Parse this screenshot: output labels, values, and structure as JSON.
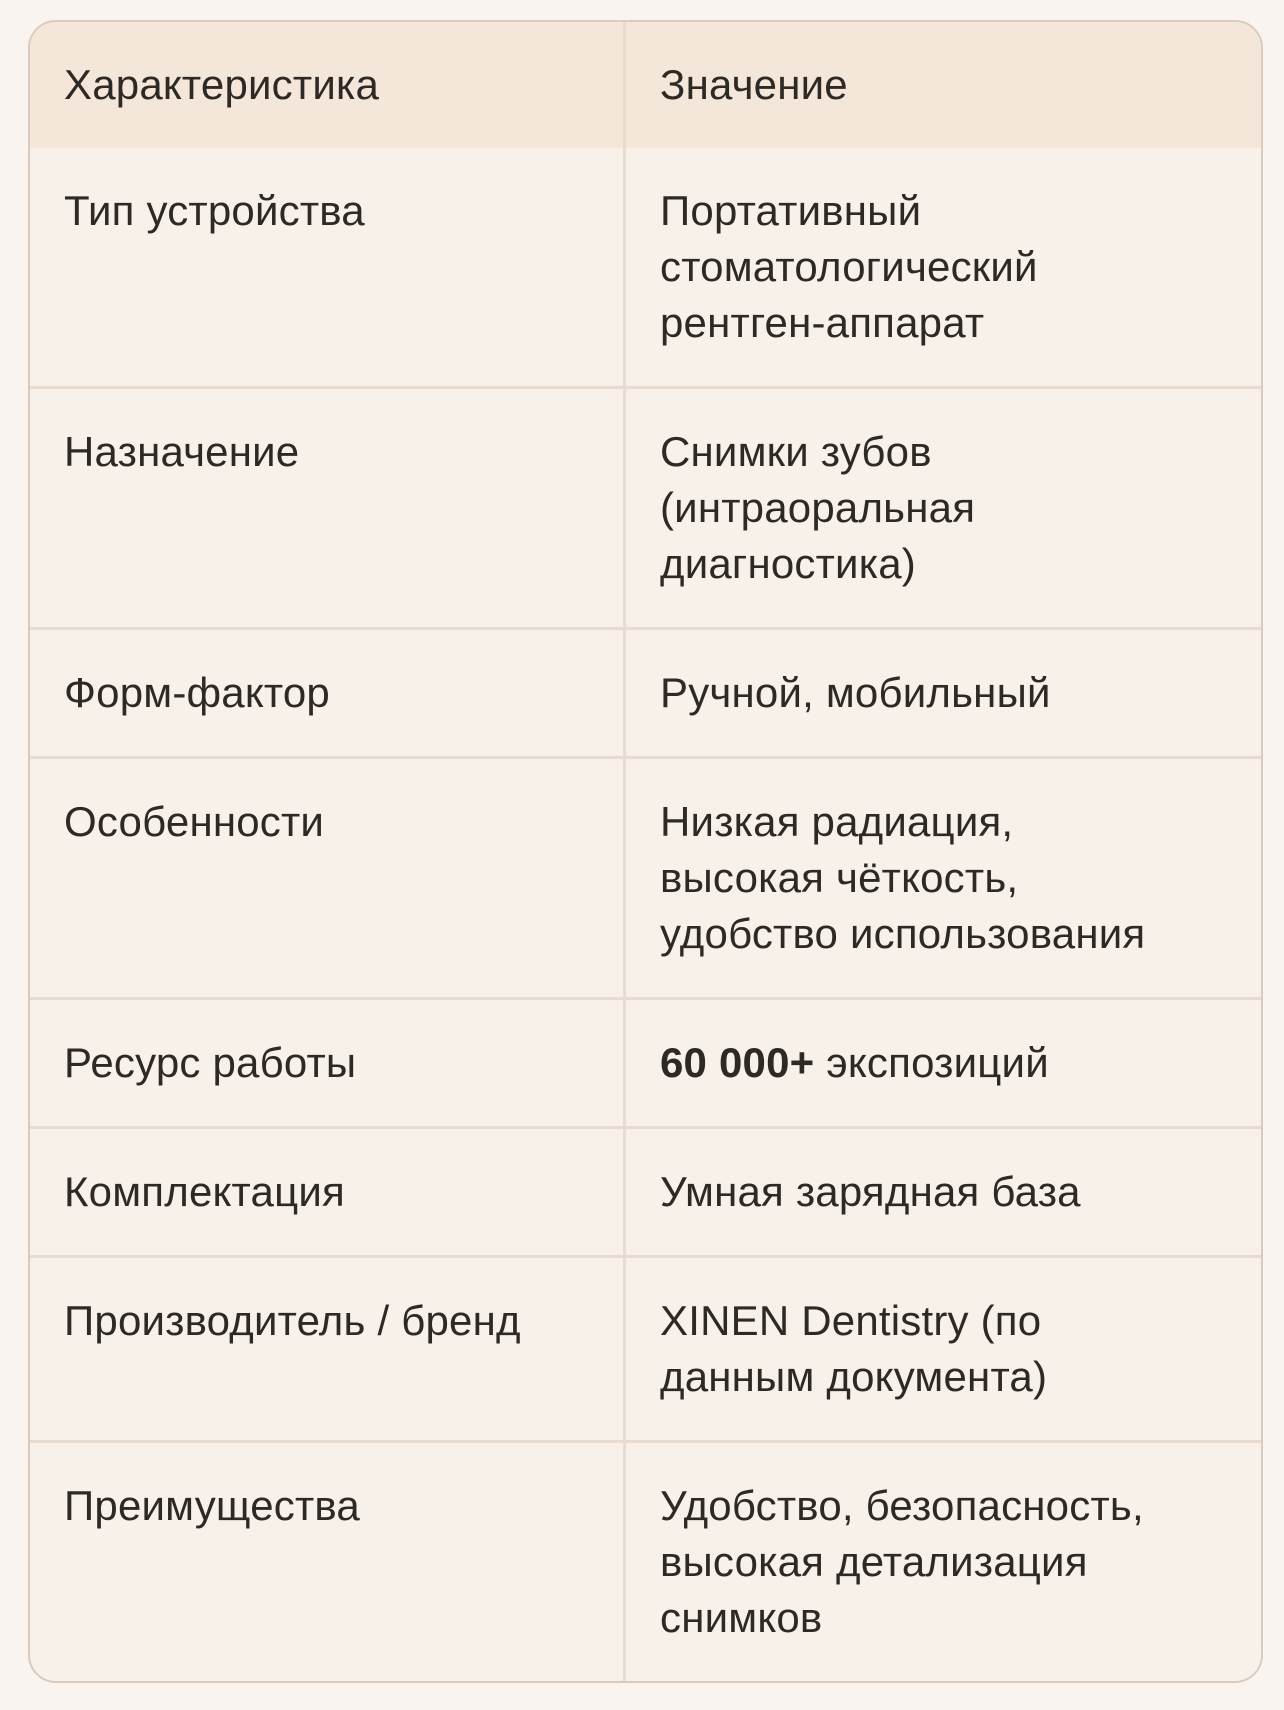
{
  "table": {
    "header": {
      "characteristic": "Характеристика",
      "value": "Значение"
    },
    "rows": [
      {
        "label": "Тип устройства",
        "value": "Портативный\nстоматологический\nрентген-аппарат"
      },
      {
        "label": "Назначение",
        "value": "Снимки зубов\n(интраоральная\nдиагностика)"
      },
      {
        "label": "Форм-фактор",
        "value": "Ручной, мобильный"
      },
      {
        "label": "Особенности",
        "value": "Низкая радиация,\nвысокая чёткость,\nудобство использования"
      },
      {
        "label": "Ресурс работы",
        "value_bold": "60 000+",
        "value": " экспозиций"
      },
      {
        "label": "Комплектация",
        "value": "Умная зарядная база"
      },
      {
        "label": "Производитель / бренд",
        "value": "XINEN Dentistry (по\nданным документа)"
      },
      {
        "label": "Преимущества",
        "value": "Удобство, безопасность,\nвысокая детализация\nснимков"
      }
    ]
  },
  "colors": {
    "page_bg": "#f9f4ef",
    "header_bg": "#f4e7da",
    "cell_bg": "#f8f1ea",
    "border": "#e9dccf",
    "card_border": "#d9ccbe",
    "text": "#2d2925"
  }
}
